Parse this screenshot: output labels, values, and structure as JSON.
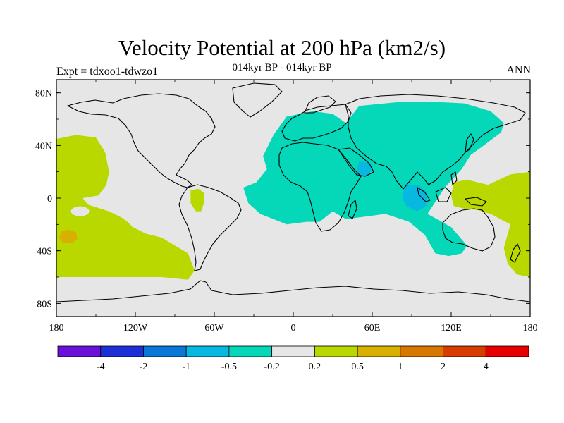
{
  "title": "Velocity Potential at 200 hPa (km2/s)",
  "subtitle": "014kyr BP - 014kyr BP",
  "left_label": "Expt = tdxoo1-tdwzo1",
  "right_label": "ANN",
  "axes": {
    "lat_ticks": [
      {
        "value": 80,
        "label": "80N"
      },
      {
        "value": 40,
        "label": "40N"
      },
      {
        "value": 0,
        "label": "0"
      },
      {
        "value": -40,
        "label": "40S"
      },
      {
        "value": -80,
        "label": "80S"
      }
    ],
    "lon_ticks": [
      {
        "value": -180,
        "label": "180"
      },
      {
        "value": -120,
        "label": "120W"
      },
      {
        "value": -60,
        "label": "60W"
      },
      {
        "value": 0,
        "label": "0"
      },
      {
        "value": 60,
        "label": "60E"
      },
      {
        "value": 120,
        "label": "120E"
      },
      {
        "value": 180,
        "label": "180"
      }
    ],
    "lon_range": [
      -180,
      180
    ],
    "lat_range": [
      -90,
      90
    ]
  },
  "colorbar": {
    "colors": [
      "#6a10d8",
      "#1f2fd8",
      "#0a78d8",
      "#07b8e0",
      "#05d8b8",
      "#e6e6e6",
      "#b8d800",
      "#d8b000",
      "#d87800",
      "#d83c00",
      "#e80000"
    ],
    "labels": [
      "-4",
      "-2",
      "-1",
      "-0.5",
      "-0.2",
      "0.2",
      "0.5",
      "1",
      "2",
      "4"
    ]
  },
  "colors": {
    "background": "#e6e6e6",
    "positive_weak": "#b8d800",
    "positive_mid": "#d8b000",
    "negative_weak": "#05d8b8",
    "negative_mid": "#07b8e0"
  },
  "chart_data": {
    "type": "heatmap",
    "projection": "cylindrical-equidistant",
    "variable": "Velocity Potential at 200 hPa",
    "units": "km2/s",
    "regions": [
      {
        "name": "east-pacific-positive",
        "level": 0.5,
        "color": "#b8d800",
        "polygon": [
          [
            -180,
            45
          ],
          [
            -165,
            48
          ],
          [
            -150,
            46
          ],
          [
            -143,
            35
          ],
          [
            -140,
            20
          ],
          [
            -142,
            10
          ],
          [
            -148,
            2
          ],
          [
            -160,
            0
          ],
          [
            -156,
            -5
          ],
          [
            -140,
            -10
          ],
          [
            -130,
            -15
          ],
          [
            -126,
            -18
          ],
          [
            -122,
            -22
          ],
          [
            -112,
            -27
          ],
          [
            -100,
            -30
          ],
          [
            -90,
            -36
          ],
          [
            -80,
            -42
          ],
          [
            -75,
            -55
          ],
          [
            -80,
            -62
          ],
          [
            -100,
            -60
          ],
          [
            -130,
            -60
          ],
          [
            -160,
            -60
          ],
          [
            -180,
            -60
          ]
        ]
      },
      {
        "name": "south-pacific-max",
        "level": 1,
        "color": "#d8b000",
        "polygon": [
          [
            -176,
            -25
          ],
          [
            -170,
            -24
          ],
          [
            -165,
            -26
          ],
          [
            -164,
            -31
          ],
          [
            -168,
            -34
          ],
          [
            -175,
            -34
          ],
          [
            -178,
            -30
          ]
        ]
      },
      {
        "name": "amazon-positive",
        "level": 0.5,
        "color": "#b8d800",
        "polygon": [
          [
            -78,
            6
          ],
          [
            -72,
            7
          ],
          [
            -68,
            4
          ],
          [
            -68,
            -4
          ],
          [
            -70,
            -10
          ],
          [
            -74,
            -10
          ],
          [
            -78,
            -4
          ]
        ]
      },
      {
        "name": "west-pacific-positive",
        "level": 0.5,
        "color": "#b8d800",
        "polygon": [
          [
            122,
            12
          ],
          [
            132,
            14
          ],
          [
            148,
            10
          ],
          [
            165,
            18
          ],
          [
            180,
            20
          ],
          [
            180,
            -60
          ],
          [
            170,
            -58
          ],
          [
            163,
            -50
          ],
          [
            160,
            -38
          ],
          [
            165,
            -20
          ],
          [
            150,
            -12
          ],
          [
            140,
            -9
          ],
          [
            130,
            -8
          ],
          [
            122,
            -6
          ],
          [
            120,
            2
          ]
        ]
      },
      {
        "name": "afro-eurasia-negative",
        "level": -0.2,
        "color": "#05d8b8",
        "polygon": [
          [
            -15,
            48
          ],
          [
            -5,
            62
          ],
          [
            15,
            66
          ],
          [
            30,
            64
          ],
          [
            40,
            57
          ],
          [
            50,
            70
          ],
          [
            80,
            73
          ],
          [
            110,
            73
          ],
          [
            130,
            72
          ],
          [
            150,
            66
          ],
          [
            160,
            57
          ],
          [
            158,
            50
          ],
          [
            150,
            44
          ],
          [
            142,
            38
          ],
          [
            135,
            33
          ],
          [
            128,
            22
          ],
          [
            115,
            8
          ],
          [
            102,
            -12
          ],
          [
            120,
            -22
          ],
          [
            132,
            -36
          ],
          [
            128,
            -42
          ],
          [
            118,
            -44
          ],
          [
            108,
            -42
          ],
          [
            100,
            -28
          ],
          [
            88,
            -18
          ],
          [
            70,
            -12
          ],
          [
            55,
            -14
          ],
          [
            40,
            -16
          ],
          [
            30,
            -10
          ],
          [
            20,
            -18
          ],
          [
            10,
            -18
          ],
          [
            -5,
            -20
          ],
          [
            -25,
            -12
          ],
          [
            -34,
            -4
          ],
          [
            -38,
            8
          ],
          [
            -28,
            12
          ],
          [
            -20,
            22
          ],
          [
            -23,
            32
          ]
        ]
      },
      {
        "name": "indian-ocean-core",
        "level": -0.5,
        "color": "#07b8e0",
        "polygon": [
          [
            85,
            10
          ],
          [
            95,
            10
          ],
          [
            102,
            4
          ],
          [
            101,
            -6
          ],
          [
            94,
            -10
          ],
          [
            86,
            -6
          ],
          [
            83,
            0
          ]
        ]
      },
      {
        "name": "arabia-core",
        "level": -0.5,
        "color": "#07b8e0",
        "polygon": [
          [
            50,
            28
          ],
          [
            57,
            27
          ],
          [
            60,
            23
          ],
          [
            57,
            17
          ],
          [
            51,
            16
          ],
          [
            48,
            20
          ]
        ]
      }
    ]
  }
}
